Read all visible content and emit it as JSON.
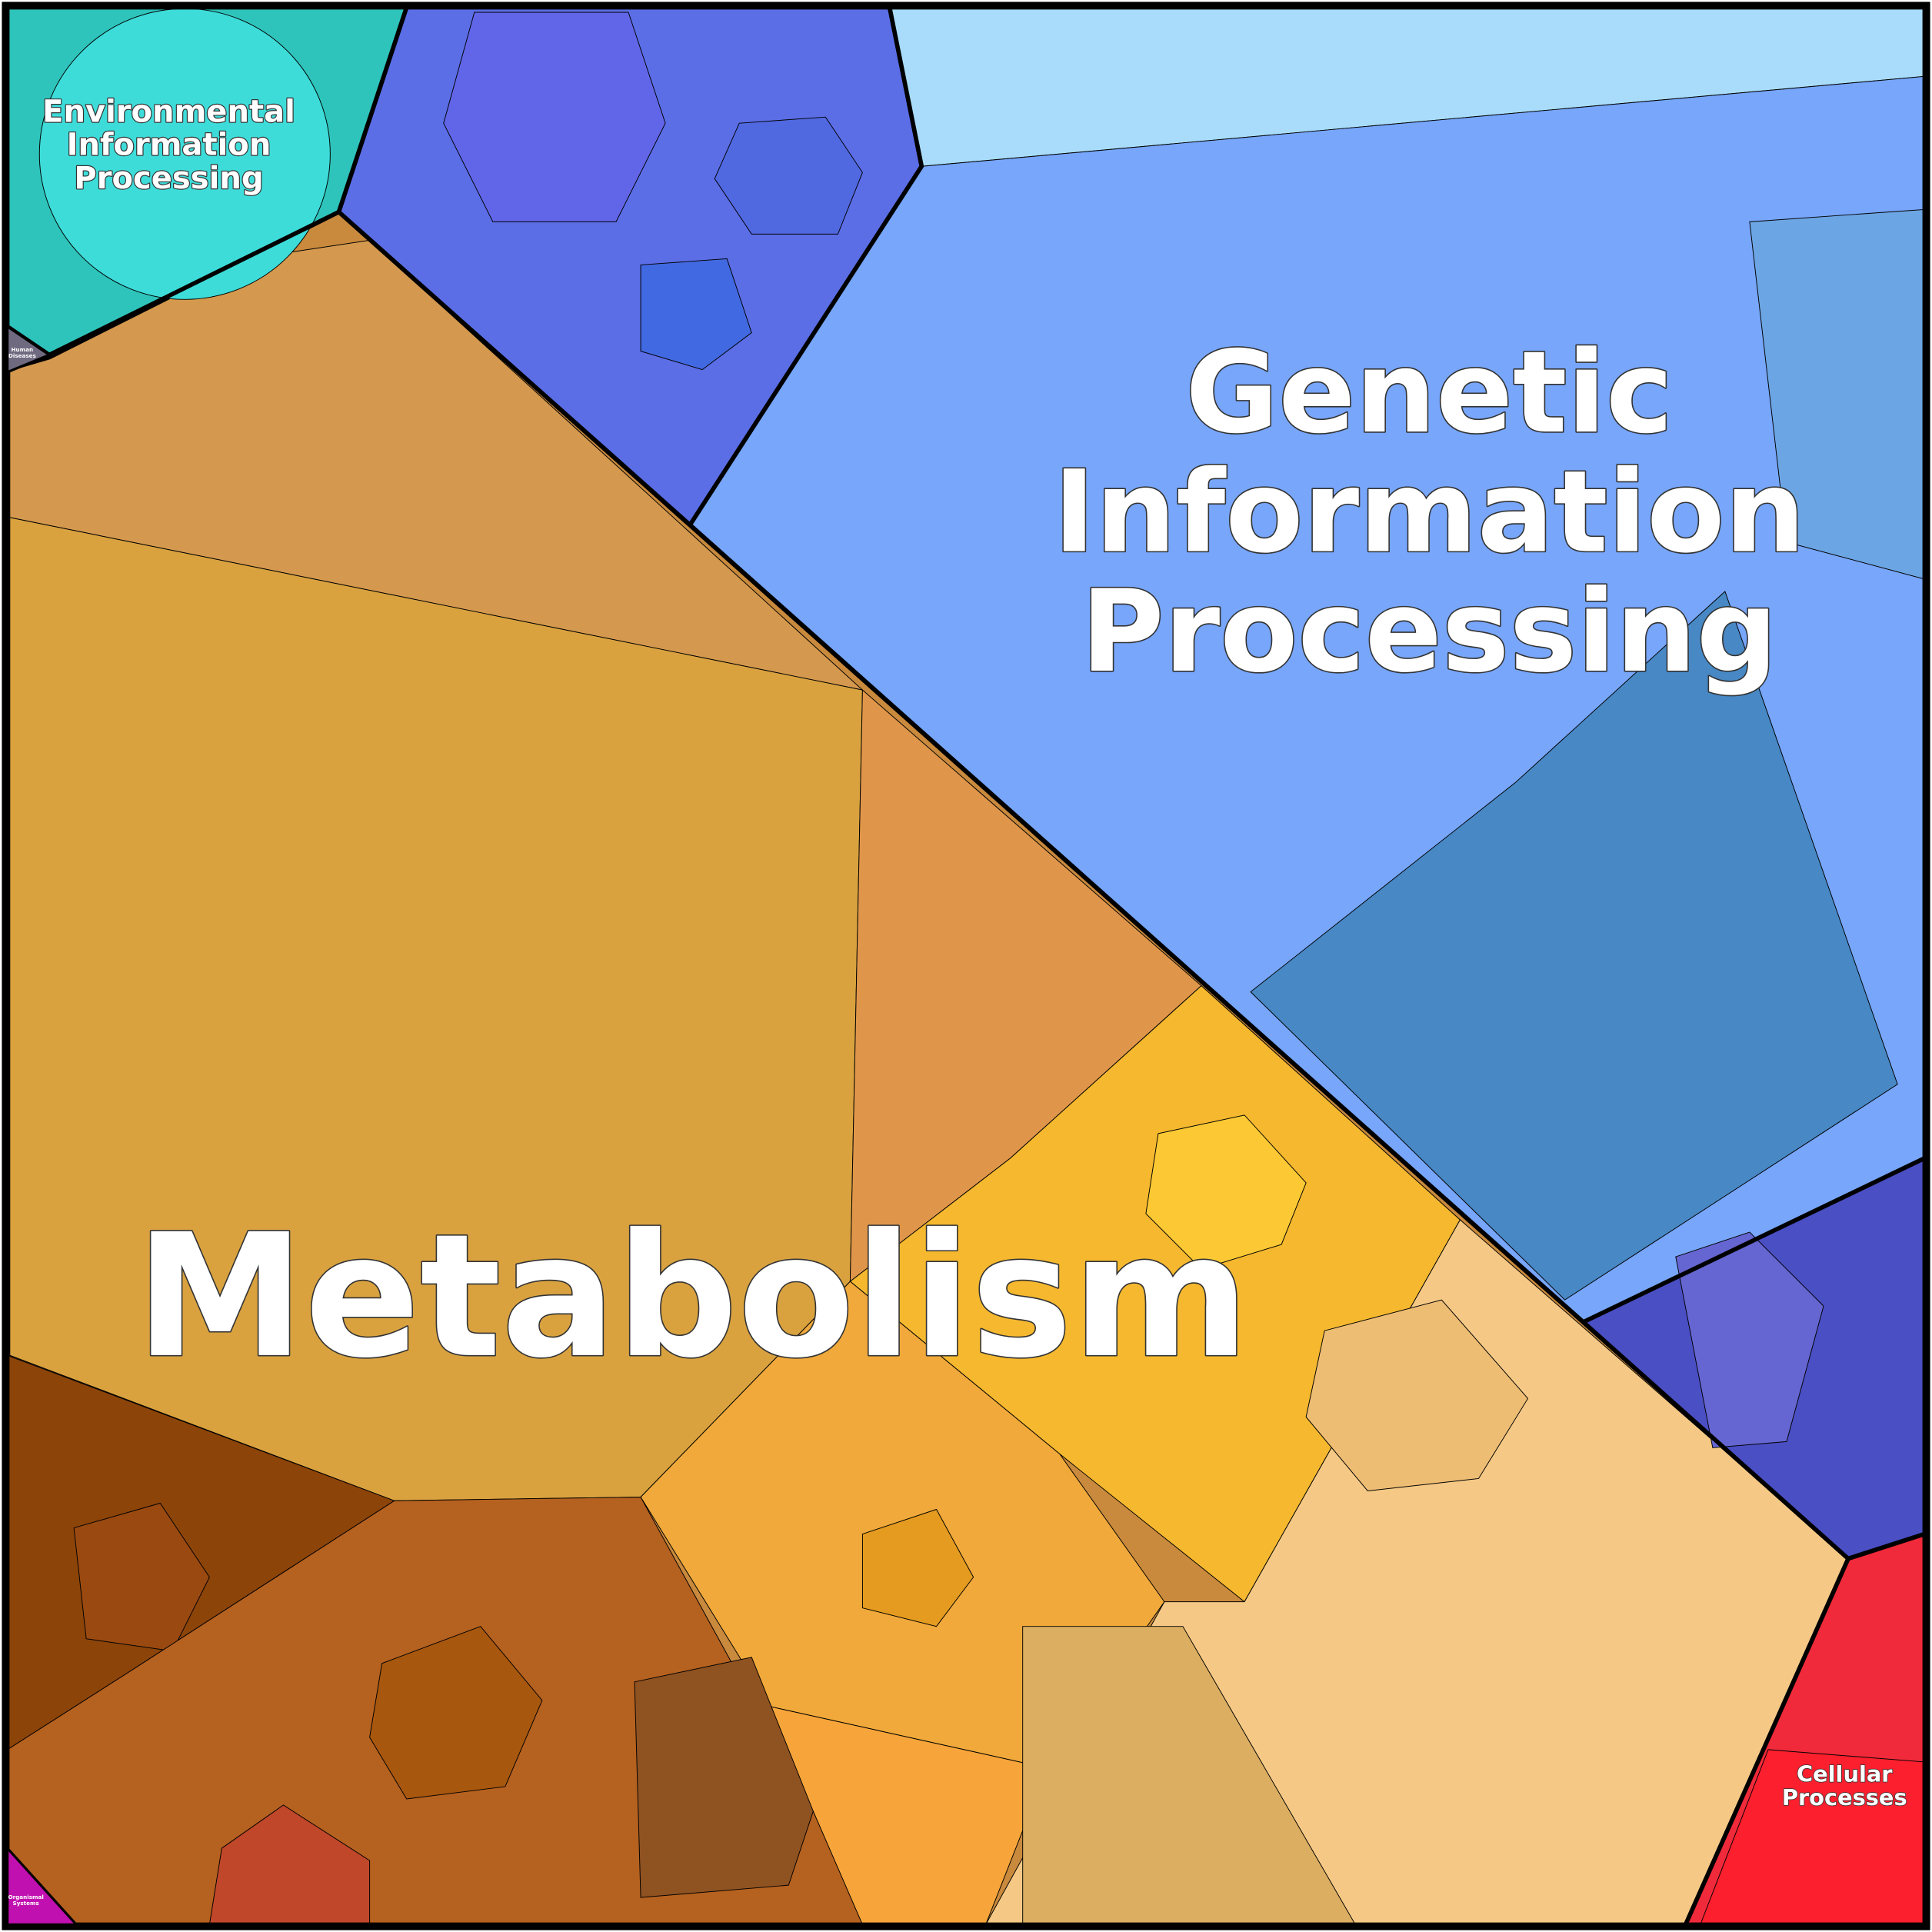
{
  "regions": [
    {
      "lines": [
        "Environmental",
        "Information",
        "Processing"
      ]
    },
    {
      "lines": [
        "Genetic",
        "Information",
        "Processing"
      ]
    },
    {
      "lines": [
        "Metabolism"
      ]
    },
    {
      "lines": [
        "Cellular",
        "Processes"
      ]
    },
    {
      "lines": [
        "Human",
        "Diseases"
      ]
    },
    {
      "lines": [
        "Organismal",
        "Systems"
      ]
    }
  ]
}
